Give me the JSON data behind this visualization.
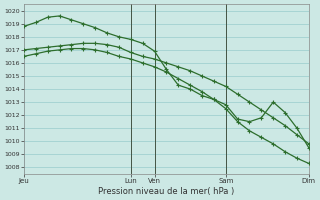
{
  "title": "Pression niveau de la mer( hPa )",
  "bg_color": "#cce8e4",
  "grid_color": "#99cccc",
  "line_color": "#2d6e2d",
  "ylim": [
    1007.5,
    1020.5
  ],
  "yticks": [
    1008,
    1009,
    1010,
    1011,
    1012,
    1013,
    1014,
    1015,
    1016,
    1017,
    1018,
    1019,
    1020
  ],
  "xtick_labels": [
    "Jeu",
    "Lun",
    "Ven",
    "Sam",
    "Dim"
  ],
  "xtick_positions": [
    0,
    9,
    11,
    17,
    24
  ],
  "vline_positions": [
    9,
    11,
    17
  ],
  "xlim": [
    0,
    24
  ],
  "series": {
    "line1_x": [
      0,
      1,
      2,
      3,
      4,
      5,
      6,
      7,
      8,
      9,
      10,
      11,
      12,
      13,
      14,
      15,
      16,
      17,
      18,
      19,
      20,
      21,
      22,
      23,
      24
    ],
    "line1_y": [
      1017.0,
      1017.1,
      1017.2,
      1017.3,
      1017.4,
      1017.5,
      1017.5,
      1017.4,
      1017.2,
      1016.8,
      1016.5,
      1016.3,
      1016.0,
      1015.7,
      1015.4,
      1015.0,
      1014.6,
      1014.2,
      1013.6,
      1013.0,
      1012.4,
      1011.8,
      1011.2,
      1010.5,
      1009.8
    ],
    "line2_x": [
      0,
      1,
      2,
      3,
      4,
      5,
      6,
      7,
      8,
      9,
      10,
      11,
      12,
      13,
      14,
      15,
      16,
      17,
      18,
      19,
      20,
      21,
      22,
      23,
      24
    ],
    "line2_y": [
      1018.8,
      1019.1,
      1019.5,
      1019.6,
      1019.3,
      1019.0,
      1018.7,
      1018.3,
      1018.0,
      1017.8,
      1017.5,
      1016.9,
      1015.5,
      1014.3,
      1014.0,
      1013.5,
      1013.2,
      1012.8,
      1011.7,
      1011.5,
      1011.8,
      1013.0,
      1012.2,
      1011.0,
      1009.5
    ],
    "line3_x": [
      0,
      1,
      2,
      3,
      4,
      5,
      6,
      7,
      8,
      9,
      10,
      11,
      12,
      13,
      14,
      15,
      16,
      17,
      18,
      19,
      20,
      21,
      22,
      23,
      24
    ],
    "line3_y": [
      1016.5,
      1016.7,
      1016.9,
      1017.0,
      1017.1,
      1017.1,
      1017.0,
      1016.8,
      1016.5,
      1016.3,
      1016.0,
      1015.7,
      1015.3,
      1014.8,
      1014.3,
      1013.8,
      1013.2,
      1012.5,
      1011.5,
      1010.8,
      1010.3,
      1009.8,
      1009.2,
      1008.7,
      1008.3
    ]
  },
  "markers_all": [
    0,
    1,
    2,
    3,
    4,
    5,
    6,
    7,
    8,
    9,
    10,
    11,
    12,
    13,
    14,
    15,
    16,
    17,
    18,
    19,
    20,
    21,
    22,
    23,
    24
  ]
}
